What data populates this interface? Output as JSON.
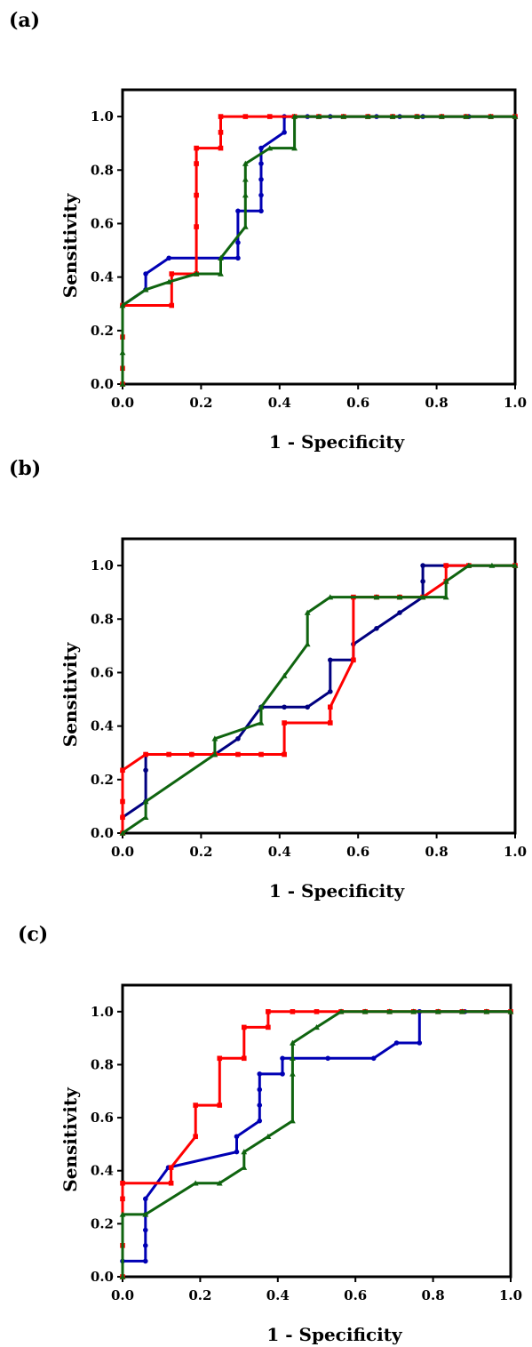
{
  "chart_data": [
    {
      "panel_label": "(a)",
      "type": "line",
      "xlabel": "1 - Specificity",
      "ylabel": "Sensitivity",
      "xlim": [
        0,
        1.0
      ],
      "ylim": [
        0,
        1.1
      ],
      "xticks": [
        "0.0",
        "0.2",
        "0.4",
        "0.6",
        "0.8",
        "1.0"
      ],
      "yticks": [
        "0.0",
        "0.2",
        "0.4",
        "0.6",
        "0.8",
        "1.0"
      ],
      "grid": false,
      "series": [
        {
          "color": "#0000b4",
          "marker": "circle",
          "x": [
            0,
            0,
            0.059,
            0.059,
            0.118,
            0.294,
            0.294,
            0.294,
            0.353,
            0.353,
            0.353,
            0.353,
            0.353,
            0.412,
            0.412,
            0.471,
            0.529,
            0.647,
            0.706,
            0.765,
            0.882,
            1.0
          ],
          "y": [
            0,
            0.294,
            0.353,
            0.412,
            0.471,
            0.471,
            0.529,
            0.647,
            0.647,
            0.706,
            0.765,
            0.824,
            0.882,
            0.941,
            1.0,
            1.0,
            1.0,
            1.0,
            1.0,
            1.0,
            1.0,
            1.0
          ]
        },
        {
          "color": "#ff0000",
          "marker": "square",
          "x": [
            0,
            0,
            0,
            0,
            0.125,
            0.125,
            0.188,
            0.188,
            0.188,
            0.188,
            0.188,
            0.25,
            0.25,
            0.25,
            0.313,
            0.375,
            0.438,
            0.5,
            0.563,
            0.625,
            0.688,
            0.75,
            0.813,
            0.875,
            0.938,
            1.0
          ],
          "y": [
            0,
            0.059,
            0.176,
            0.294,
            0.294,
            0.412,
            0.412,
            0.588,
            0.706,
            0.824,
            0.882,
            0.882,
            0.941,
            1.0,
            1.0,
            1.0,
            1.0,
            1.0,
            1.0,
            1.0,
            1.0,
            1.0,
            1.0,
            1.0,
            1.0,
            1.0
          ]
        },
        {
          "color": "#0f640f",
          "marker": "triangle",
          "x": [
            0,
            0,
            0,
            0.059,
            0.118,
            0.188,
            0.25,
            0.25,
            0.313,
            0.313,
            0.313,
            0.313,
            0.375,
            0.438,
            0.438,
            0.5,
            0.563,
            0.625,
            0.688,
            0.75,
            0.813,
            0.875,
            0.938,
            1.0
          ],
          "y": [
            0,
            0.118,
            0.294,
            0.353,
            0.382,
            0.412,
            0.412,
            0.471,
            0.588,
            0.706,
            0.765,
            0.824,
            0.882,
            0.882,
            1.0,
            1.0,
            1.0,
            1.0,
            1.0,
            1.0,
            1.0,
            1.0,
            1.0,
            1.0
          ]
        }
      ]
    },
    {
      "panel_label": "(b)",
      "type": "line",
      "xlabel": "1 - Specificity",
      "ylabel": "Sensitivity",
      "xlim": [
        0,
        1.0
      ],
      "ylim": [
        0,
        1.1
      ],
      "xticks": [
        "0.0",
        "0.2",
        "0.4",
        "0.6",
        "0.8",
        "1.0"
      ],
      "yticks": [
        "0.0",
        "0.2",
        "0.4",
        "0.6",
        "0.8",
        "1.0"
      ],
      "grid": false,
      "series": [
        {
          "color": "#000080",
          "marker": "circle",
          "x": [
            0,
            0.059,
            0.059,
            0.059,
            0.176,
            0.235,
            0.294,
            0.353,
            0.412,
            0.471,
            0.529,
            0.529,
            0.588,
            0.588,
            0.647,
            0.706,
            0.765,
            0.765,
            0.765,
            0.824,
            0.882,
            1.0
          ],
          "y": [
            0.059,
            0.118,
            0.235,
            0.294,
            0.294,
            0.294,
            0.353,
            0.471,
            0.471,
            0.471,
            0.529,
            0.647,
            0.647,
            0.706,
            0.765,
            0.824,
            0.882,
            0.941,
            1.0,
            1.0,
            1.0,
            1.0
          ]
        },
        {
          "color": "#ff0000",
          "marker": "square",
          "x": [
            0,
            0,
            0,
            0,
            0.059,
            0.118,
            0.176,
            0.235,
            0.294,
            0.353,
            0.412,
            0.412,
            0.529,
            0.529,
            0.588,
            0.588,
            0.647,
            0.706,
            0.765,
            0.824,
            0.824,
            0.882,
            1.0
          ],
          "y": [
            0,
            0.059,
            0.118,
            0.235,
            0.294,
            0.294,
            0.294,
            0.294,
            0.294,
            0.294,
            0.294,
            0.412,
            0.412,
            0.471,
            0.647,
            0.882,
            0.882,
            0.882,
            0.882,
            0.941,
            1.0,
            1.0,
            1.0
          ]
        },
        {
          "color": "#0f640f",
          "marker": "triangle",
          "x": [
            0,
            0.059,
            0.059,
            0.235,
            0.235,
            0.353,
            0.353,
            0.412,
            0.471,
            0.471,
            0.529,
            0.647,
            0.706,
            0.765,
            0.824,
            0.824,
            0.882,
            0.941,
            1.0
          ],
          "y": [
            0,
            0.059,
            0.118,
            0.294,
            0.353,
            0.412,
            0.471,
            0.588,
            0.706,
            0.824,
            0.882,
            0.882,
            0.882,
            0.882,
            0.882,
            0.941,
            1.0,
            1.0,
            1.0
          ]
        }
      ]
    },
    {
      "panel_label": "(c)",
      "type": "line",
      "xlabel": "1 - Specificity",
      "ylabel": "Sensitivity",
      "xlim": [
        0,
        1.0
      ],
      "ylim": [
        0,
        1.1
      ],
      "xticks": [
        "0.0",
        "0.2",
        "0.4",
        "0.6",
        "0.8",
        "1.0"
      ],
      "yticks": [
        "0.0",
        "0.2",
        "0.4",
        "0.6",
        "0.8",
        "1.0"
      ],
      "grid": false,
      "series": [
        {
          "color": "#0000b4",
          "marker": "circle",
          "x": [
            0,
            0.059,
            0.059,
            0.059,
            0.059,
            0.059,
            0.118,
            0.294,
            0.294,
            0.353,
            0.353,
            0.353,
            0.353,
            0.412,
            0.412,
            0.529,
            0.647,
            0.706,
            0.765,
            0.765,
            0.765,
            0.882,
            1.0
          ],
          "y": [
            0.059,
            0.059,
            0.118,
            0.176,
            0.235,
            0.294,
            0.412,
            0.471,
            0.529,
            0.588,
            0.647,
            0.706,
            0.765,
            0.765,
            0.824,
            0.824,
            0.824,
            0.882,
            0.882,
            1.0,
            1.0,
            1.0,
            1.0
          ]
        },
        {
          "color": "#ff0000",
          "marker": "square",
          "x": [
            0,
            0,
            0,
            0,
            0.125,
            0.125,
            0.188,
            0.188,
            0.25,
            0.25,
            0.313,
            0.313,
            0.375,
            0.375,
            0.438,
            0.5,
            0.563,
            0.625,
            0.688,
            0.75,
            0.813,
            0.875,
            0.938,
            1.0
          ],
          "y": [
            0,
            0.118,
            0.294,
            0.353,
            0.353,
            0.412,
            0.529,
            0.647,
            0.647,
            0.824,
            0.824,
            0.941,
            0.941,
            1.0,
            1.0,
            1.0,
            1.0,
            1.0,
            1.0,
            1.0,
            1.0,
            1.0,
            1.0,
            1.0
          ]
        },
        {
          "color": "#0f640f",
          "marker": "triangle",
          "x": [
            0,
            0,
            0.059,
            0.188,
            0.25,
            0.313,
            0.313,
            0.375,
            0.438,
            0.438,
            0.438,
            0.438,
            0.5,
            0.563,
            0.625,
            0.688,
            0.75,
            0.813,
            0.875,
            0.938,
            1.0
          ],
          "y": [
            0,
            0.235,
            0.235,
            0.353,
            0.353,
            0.412,
            0.471,
            0.529,
            0.588,
            0.765,
            0.824,
            0.882,
            0.941,
            1.0,
            1.0,
            1.0,
            1.0,
            1.0,
            1.0,
            1.0,
            1.0
          ]
        }
      ]
    }
  ]
}
